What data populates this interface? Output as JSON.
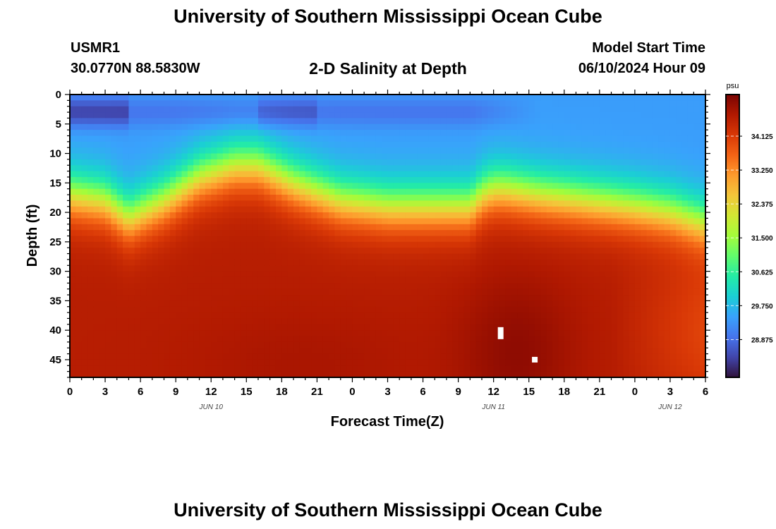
{
  "header": {
    "title": "University of Southern Mississippi Ocean Cube",
    "station_id": "USMR1",
    "station_coords": "30.0770N  88.5830W",
    "chart_title": "2-D Salinity at Depth",
    "model_start_label": "Model Start Time",
    "model_start_value": "06/10/2024 Hour 09"
  },
  "footer": {
    "title": "University of Southern Mississippi Ocean Cube"
  },
  "chart_data": {
    "type": "heatmap",
    "title": "2-D Salinity at Depth",
    "xlabel": "Forecast Time(Z)",
    "ylabel": "Depth (ft)",
    "x_tick_labels": [
      "0",
      "3",
      "6",
      "9",
      "12",
      "15",
      "18",
      "21",
      "0",
      "3",
      "6",
      "9",
      "12",
      "15",
      "18",
      "21",
      "0",
      "3",
      "6"
    ],
    "x_range_hours": [
      0,
      54
    ],
    "date_labels": [
      {
        "label": "JUN 10",
        "hour": 12
      },
      {
        "label": "JUN 11",
        "hour": 36
      },
      {
        "label": "JUN 12",
        "hour": 51
      }
    ],
    "y_ticks": [
      0,
      5,
      10,
      15,
      20,
      25,
      30,
      35,
      40,
      45
    ],
    "y_range_ft": [
      0,
      48
    ],
    "colorbar": {
      "unit": "psu",
      "ticks": [
        34.125,
        33.25,
        32.375,
        31.5,
        30.625,
        29.75,
        28.875
      ],
      "tick_labels": [
        "34.125",
        "33.250",
        "32.375",
        "31.500",
        "30.625",
        "29.750",
        "28.875"
      ],
      "range": [
        27.9,
        35.2
      ],
      "colors": [
        "#30123b",
        "#4145ab",
        "#4675ed",
        "#39a2fc",
        "#1bcfd4",
        "#24eca6",
        "#61fc6c",
        "#a4fc3b",
        "#d1e834",
        "#f3c63a",
        "#fe9b2d",
        "#f36315",
        "#d93806",
        "#b11901",
        "#7a0402"
      ]
    },
    "field": {
      "halocline_depth_ft_vs_hour": [
        [
          0,
          17
        ],
        [
          3,
          18
        ],
        [
          5,
          21
        ],
        [
          8,
          18
        ],
        [
          11,
          14
        ],
        [
          14,
          12
        ],
        [
          16,
          12
        ],
        [
          19,
          15
        ],
        [
          23,
          18
        ],
        [
          27,
          19
        ],
        [
          31,
          19
        ],
        [
          34,
          19
        ],
        [
          35,
          17
        ],
        [
          36,
          16
        ],
        [
          37,
          16
        ],
        [
          40,
          17
        ],
        [
          44,
          18
        ],
        [
          48,
          19
        ],
        [
          51,
          20
        ],
        [
          54,
          22
        ]
      ],
      "surface_psu": 29.4,
      "surface_low_psu": 28.4,
      "deep_psu": 34.6,
      "max_psu": 35.0
    },
    "missing_cells": [
      {
        "hour": 36.6,
        "depth_ft": 40.5
      },
      {
        "hour": 39.5,
        "depth_ft": 45.0
      }
    ]
  }
}
